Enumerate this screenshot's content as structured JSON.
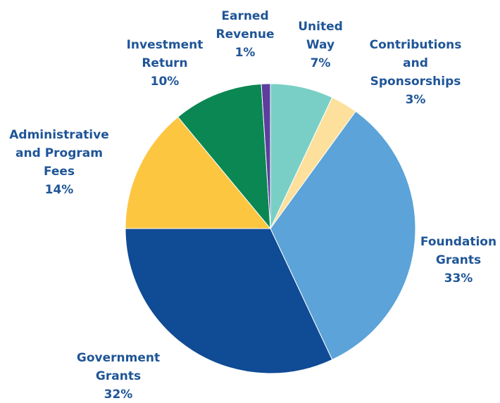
{
  "chart_data": {
    "type": "pie",
    "title": "",
    "slices": [
      {
        "name": "United Way",
        "lines": [
          "United",
          "Way",
          "7%"
        ],
        "value": 7,
        "color": "#79cfc6"
      },
      {
        "name": "Contributions and Sponsorships",
        "lines": [
          "Contributions",
          "and",
          "Sponsorships",
          "3%"
        ],
        "value": 3,
        "color": "#fde09c"
      },
      {
        "name": "Foundation Grants",
        "lines": [
          "Foundation",
          "Grants",
          "33%"
        ],
        "value": 33,
        "color": "#5ba3d8"
      },
      {
        "name": "Government Grants",
        "lines": [
          "Government",
          "Grants",
          "32%"
        ],
        "value": 32,
        "color": "#104b95"
      },
      {
        "name": "Administrative and Program Fees",
        "lines": [
          "Administrative",
          "and Program",
          "Fees",
          "14%"
        ],
        "value": 14,
        "color": "#fdc641"
      },
      {
        "name": "Investment Return",
        "lines": [
          "Investment",
          "Return",
          "10%"
        ],
        "value": 10,
        "color": "#0a8752"
      },
      {
        "name": "Earned Revenue",
        "lines": [
          "Earned",
          "Revenue",
          "1%"
        ],
        "value": 1,
        "color": "#5d3e9e"
      }
    ],
    "start_angle": "12 o'clock",
    "direction": "clockwise",
    "legend": "none (direct labels)"
  }
}
